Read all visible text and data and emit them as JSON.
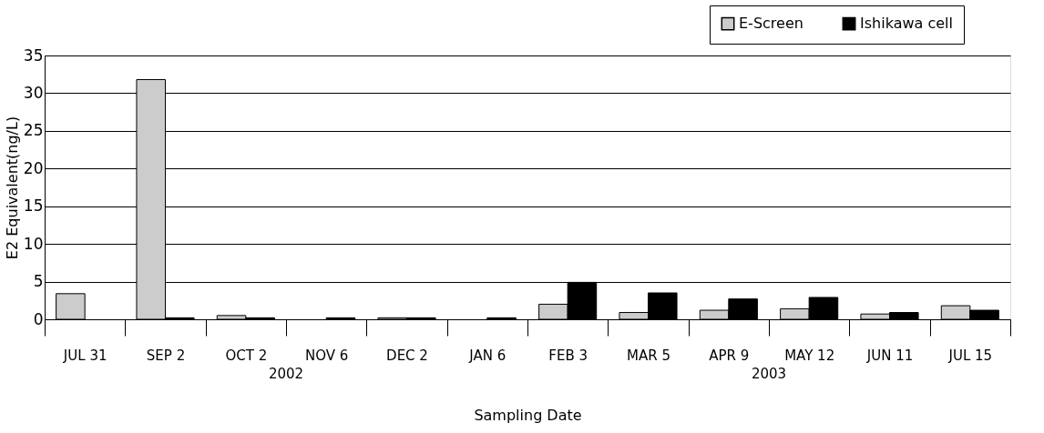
{
  "chart_data": {
    "type": "bar",
    "xlabel": "Sampling Date",
    "ylabel": "E2 Equivalent(ng/L)",
    "categories": [
      "JUL 31",
      "SEP 2",
      "OCT 2",
      "NOV 6",
      "DEC 2",
      "JAN 6",
      "FEB 3",
      "MAR 5",
      "APR 9",
      "MAY 12",
      "JUN 11",
      "JUL 15"
    ],
    "series": [
      {
        "name": "E-Screen",
        "color": "#cccccc",
        "values": [
          3.4,
          31.8,
          0.5,
          null,
          0.2,
          null,
          2.0,
          0.9,
          1.2,
          1.4,
          0.7,
          1.8
        ]
      },
      {
        "name": "Ishikawa cell",
        "color": "#000000",
        "values": [
          null,
          0.2,
          0.2,
          0.2,
          0.2,
          0.2,
          4.9,
          3.5,
          2.7,
          2.9,
          0.9,
          1.2
        ]
      }
    ],
    "ylim": [
      0,
      35
    ],
    "yticks": [
      0,
      5,
      10,
      15,
      20,
      25,
      30,
      35
    ],
    "grid": "y",
    "legend": "top right",
    "annotations": [
      "2002",
      "2003"
    ]
  }
}
